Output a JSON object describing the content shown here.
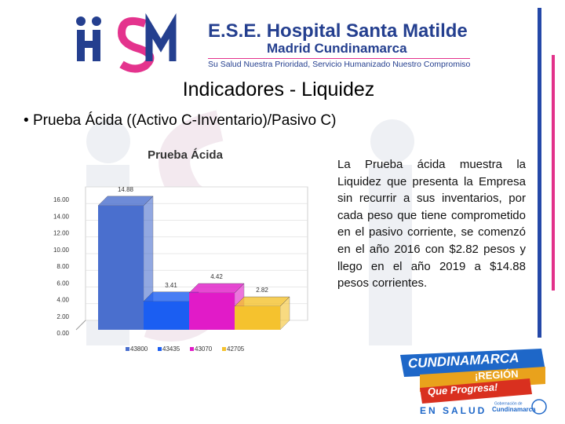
{
  "header": {
    "name": "E.S.E. Hospital Santa Matilde",
    "place": "Madrid Cundinamarca",
    "motto": "Su Salud Nuestra Prioridad, Servicio Humanizado Nuestro Compromiso"
  },
  "slide": {
    "title": "Indicadores - Liquidez",
    "bullet": "Prueba Ácida ((Activo C-Inventario)/Pasivo C)",
    "paragraph": "La Prueba ácida muestra la Liquidez que presenta la Empresa sin recurrir a sus inventarios, por cada peso que tiene comprometido en el pasivo corriente, se comenzó en el año 2016 con $2.82 pesos y llego en el año 2019 a $14.88 pesos corrientes."
  },
  "badge": {
    "line1": "CUNDINAMARCA",
    "line2": "¡REGIÓN",
    "line3": "Que Progresa!",
    "line4": "EN SALUD",
    "gov1": "Gobernación de",
    "gov2": "Cundinamarca"
  },
  "chart_data": {
    "type": "bar",
    "title": "Prueba Ácida",
    "series": [
      {
        "name": "43800",
        "color": "#4a6fce",
        "values": [
          14.88
        ],
        "value_labels": [
          "14.88"
        ]
      },
      {
        "name": "43435",
        "color": "#1b5ef2",
        "values": [
          3.41
        ],
        "value_labels": [
          "3.41"
        ]
      },
      {
        "name": "43070",
        "color": "#e11bc8",
        "values": [
          4.42
        ],
        "value_labels": [
          "4.42"
        ]
      },
      {
        "name": "42705",
        "color": "#f5c22e",
        "values": [
          2.82
        ],
        "value_labels": [
          "2.82"
        ]
      }
    ],
    "ylim": [
      0,
      16
    ],
    "yticks": [
      {
        "value": 0,
        "label": "0.00"
      },
      {
        "value": 2,
        "label": "2.00"
      },
      {
        "value": 4,
        "label": "4.00"
      },
      {
        "value": 6,
        "label": "6.00"
      },
      {
        "value": 8,
        "label": "8.00"
      },
      {
        "value": 10,
        "label": "10.00"
      },
      {
        "value": 12,
        "label": "12.00"
      },
      {
        "value": 14,
        "label": "14.00"
      },
      {
        "value": 16,
        "label": "16.00"
      }
    ],
    "legend": "bottom"
  }
}
